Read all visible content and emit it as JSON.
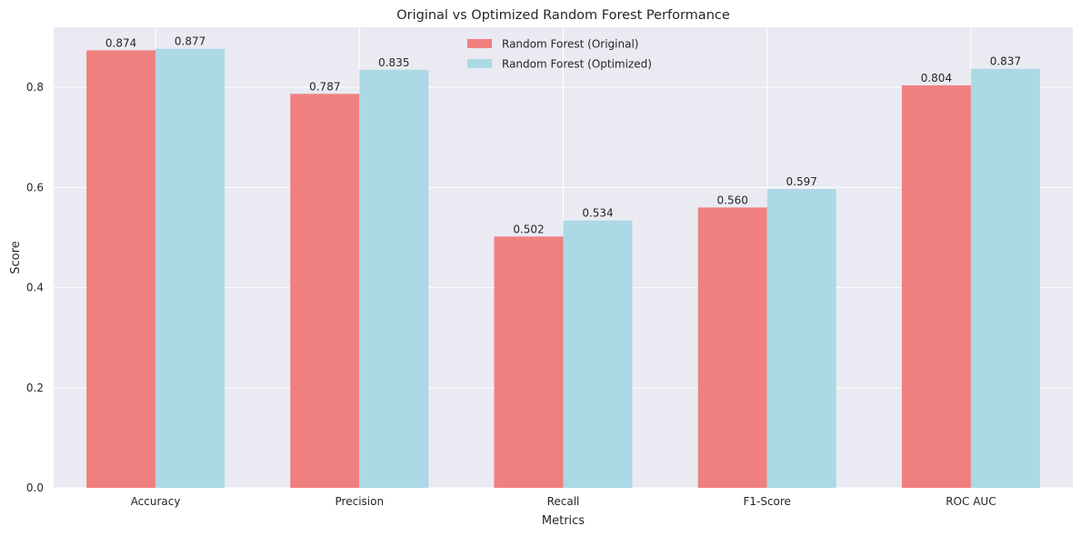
{
  "chart_data": {
    "type": "bar",
    "title": "Original vs Optimized Random Forest Performance",
    "xlabel": "Metrics",
    "ylabel": "Score",
    "categories": [
      "Accuracy",
      "Precision",
      "Recall",
      "F1-Score",
      "ROC AUC"
    ],
    "series": [
      {
        "name": "Random Forest (Original)",
        "color": "#f08080",
        "values": [
          0.874,
          0.787,
          0.502,
          0.56,
          0.804
        ],
        "labels": [
          "0.874",
          "0.787",
          "0.502",
          "0.560",
          "0.804"
        ]
      },
      {
        "name": "Random Forest (Optimized)",
        "color": "#add8e6",
        "values": [
          0.877,
          0.835,
          0.534,
          0.597,
          0.837
        ],
        "labels": [
          "0.877",
          "0.835",
          "0.534",
          "0.597",
          "0.837"
        ]
      }
    ],
    "ylim": [
      0,
      0.92
    ],
    "yticks": [
      0.0,
      0.2,
      0.4,
      0.6,
      0.8
    ],
    "ytick_labels": [
      "0.0",
      "0.2",
      "0.4",
      "0.6",
      "0.8"
    ],
    "grid": true,
    "legend_position": "upper center",
    "plot_background": "#eaeaf2",
    "grid_color": "#ffffff"
  }
}
